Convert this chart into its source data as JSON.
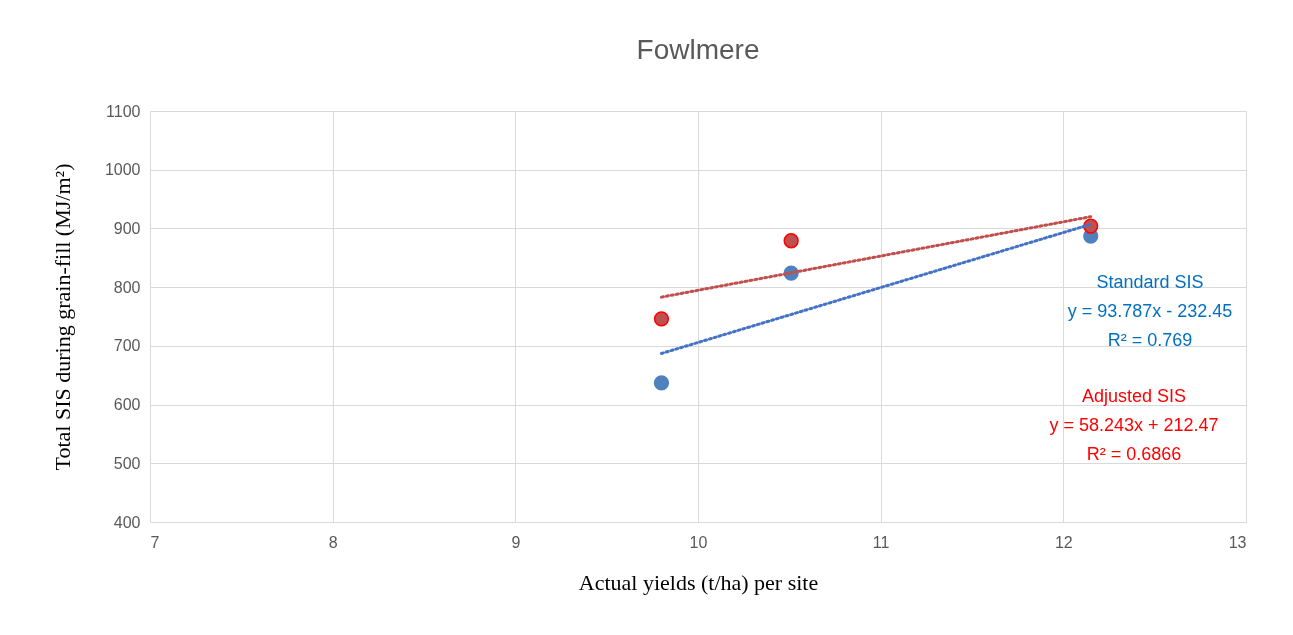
{
  "chart_data": {
    "type": "scatter",
    "title": "Fowlmere",
    "xlabel": "Actual yields (t/ha) per site",
    "ylabel": "Total SIS during grain-fill (MJ/m²)",
    "series": [
      {
        "name": "Standard SIS",
        "color": "#4f81bd",
        "x": [
          9.8,
          10.51,
          12.15
        ],
        "values": [
          637,
          824,
          887
        ],
        "marker": "circle"
      },
      {
        "name": "Adjusted SIS",
        "color": "#c0504d",
        "x": [
          9.8,
          10.51,
          12.15
        ],
        "values": [
          746,
          879,
          904
        ],
        "marker": "circle"
      },
      {
        "type": "line",
        "color": "#4472c4",
        "x": [
          9.8,
          12.15
        ],
        "values": [
          687,
          907
        ],
        "line_style": "dotted"
      },
      {
        "type": "line",
        "color": "#c0504d",
        "x": [
          9.8,
          12.15
        ],
        "values": [
          783,
          920
        ],
        "line_style": "dotted"
      }
    ],
    "annotations": [
      "y = 93.787x - 232.45",
      "R² = 0.769",
      "y = 58.243x + 212.47",
      "R² = 0.6866"
    ],
    "xlim": [
      7,
      13
    ],
    "xticks": [
      7,
      8,
      9,
      10,
      11,
      12,
      13
    ],
    "ylim": [
      400,
      1100
    ],
    "yticks": [
      400,
      500,
      600,
      700,
      800,
      900,
      1000,
      1100
    ],
    "grid": true,
    "legend": false
  }
}
